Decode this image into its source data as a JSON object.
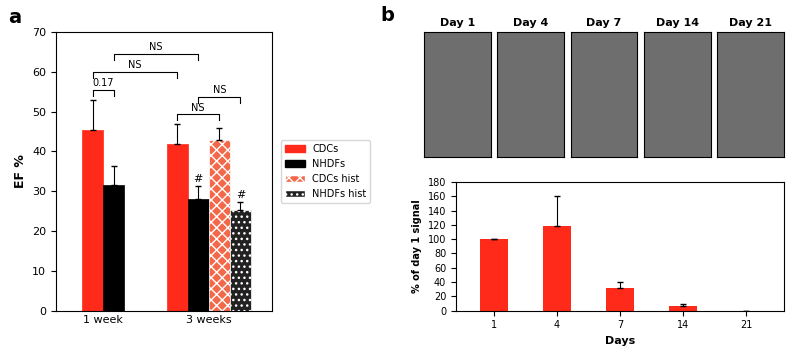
{
  "chart_data": [
    {
      "type": "bar",
      "title": "a",
      "categories": [
        "1 week",
        "3 weeks"
      ],
      "ylabel": "EF %",
      "ylim": [
        0,
        70
      ],
      "yticks": [
        0,
        10,
        20,
        30,
        40,
        50,
        60,
        70
      ],
      "legend": "right",
      "series": [
        {
          "name": "CDCs",
          "color": "#ff2a1a",
          "values": [
            45.5,
            42
          ],
          "errors": [
            7.5,
            4.8
          ]
        },
        {
          "name": "NHDFs",
          "color": "#000000",
          "values": [
            31.5,
            28
          ],
          "errors": [
            4.8,
            3.2
          ]
        },
        {
          "name": "CDCs hist",
          "color": "#f4684a",
          "values": [
            null,
            42.8
          ],
          "errors": [
            null,
            3
          ]
        },
        {
          "name": "NHDFs hist",
          "color": "#222222",
          "values": [
            null,
            25.3
          ],
          "errors": [
            null,
            2
          ]
        }
      ],
      "comparisons": [
        {
          "between": [
            [
              "1 week",
              "CDCs"
            ],
            [
              "1 week",
              "NHDFs"
            ]
          ],
          "label": "0.17"
        },
        {
          "between": [
            [
              "3 weeks",
              "CDCs"
            ],
            [
              "3 weeks",
              "CDCs hist"
            ]
          ],
          "label": "NS"
        },
        {
          "between": [
            [
              "3 weeks",
              "NHDFs"
            ],
            [
              "3 weeks",
              "NHDFs hist"
            ]
          ],
          "label": "NS"
        },
        {
          "between": [
            [
              "1 week",
              "CDCs"
            ],
            [
              "3 weeks",
              "CDCs"
            ]
          ],
          "label": "NS"
        },
        {
          "between": [
            [
              "1 week",
              "NHDFs"
            ],
            [
              "3 weeks",
              "NHDFs"
            ]
          ],
          "label": "NS"
        }
      ],
      "markers": [
        {
          "category": "3 weeks",
          "series": "NHDFs",
          "label": "#"
        },
        {
          "category": "3 weeks",
          "series": "NHDFs hist",
          "label": "#"
        }
      ]
    },
    {
      "type": "bar",
      "title": "b",
      "categories": [
        "1",
        "4",
        "7",
        "14",
        "21"
      ],
      "xlabel": "Days",
      "ylabel": "% of day 1 signal",
      "ylim": [
        0,
        180
      ],
      "yticks": [
        0,
        20,
        40,
        60,
        80,
        100,
        120,
        140,
        160,
        180
      ],
      "color": "#ff2a1a",
      "values": [
        100,
        119,
        32,
        7,
        0
      ],
      "errors": [
        0,
        42,
        8,
        2,
        0
      ],
      "image_labels": [
        "Day 1",
        "Day 4",
        "Day 7",
        "Day 14",
        "Day 21"
      ]
    }
  ]
}
